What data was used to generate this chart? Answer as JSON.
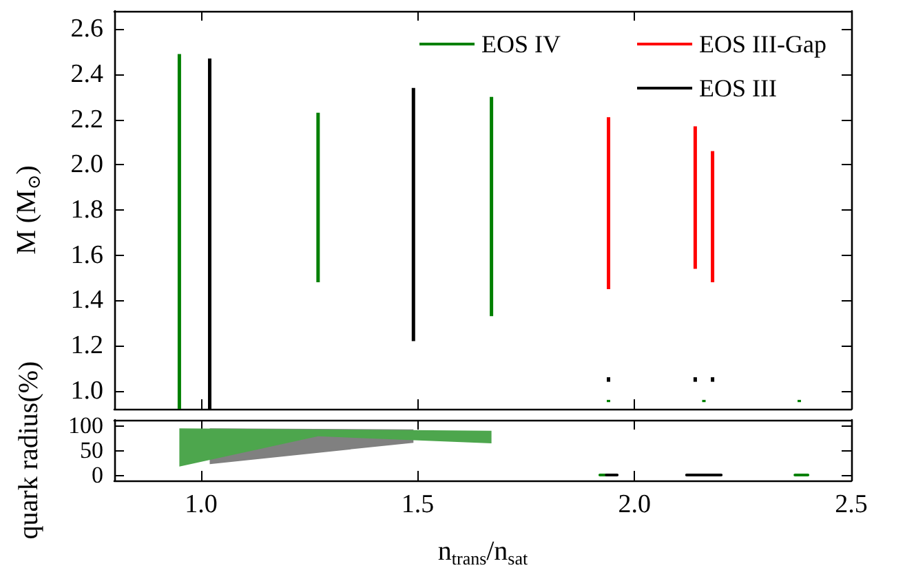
{
  "chart_data": [
    {
      "type": "bar",
      "ylabel": "M (M$_{⊙}$)",
      "legend": "top right",
      "tick_labels": "y",
      "xlim": [
        0.8,
        2.5
      ],
      "xticks": [
        {
          "value": 1,
          "label": null
        },
        {
          "value": 1.5,
          "label": null
        },
        {
          "value": 2,
          "label": null
        },
        {
          "value": 2.5,
          "label": null
        }
      ],
      "ylim": [
        0.92,
        2.68
      ],
      "yticks": [
        {
          "value": 1,
          "label": "1.0"
        },
        {
          "value": 1.2,
          "label": "1.2"
        },
        {
          "value": 1.4,
          "label": "1.4"
        },
        {
          "value": 1.6,
          "label": "1.6"
        },
        {
          "value": 1.8,
          "label": "1.8"
        },
        {
          "value": 2,
          "label": "2.0"
        },
        {
          "value": 2.2,
          "label": "2.2"
        },
        {
          "value": 2.4,
          "label": "2.4"
        },
        {
          "value": 2.6,
          "label": "2.6"
        }
      ],
      "series": [
        {
          "name": "EOS IV",
          "color": "#008000",
          "x": [
            0.95,
            1.27,
            1.67,
            1.94,
            2.16,
            2.38
          ],
          "base": [
            0.92,
            1.48,
            1.33,
            0.95,
            0.95,
            0.95
          ],
          "values": [
            1.57,
            0.75,
            0.97,
            0.01,
            0.01,
            0.01
          ]
        },
        {
          "name": "EOS III-Gap",
          "color": "#ff0000",
          "x": [
            1.94,
            2.14,
            2.18
          ],
          "base": [
            1.45,
            1.54,
            1.48
          ],
          "values": [
            0.76,
            0.63,
            0.58
          ]
        },
        {
          "name": "EOS III",
          "color": "#000000",
          "x": [
            1.02,
            1.49,
            1.94,
            2.14,
            2.18
          ],
          "base": [
            0.92,
            1.22,
            1.04,
            1.04,
            1.04
          ],
          "values": [
            1.55,
            1.12,
            0.02,
            0.02,
            0.02
          ]
        }
      ]
    },
    {
      "type": "line",
      "xlabel": "n$_{trans}$/n$_{sat}$",
      "ylabel": "quark radius(%)",
      "marker": "none",
      "xlim": [
        0.8,
        2.5
      ],
      "xticks": [
        {
          "value": 1,
          "label": "1.0"
        },
        {
          "value": 1.5,
          "label": "1.5"
        },
        {
          "value": 2,
          "label": "2.0"
        },
        {
          "value": 2.5,
          "label": "2.5"
        }
      ],
      "ylim": [
        -11,
        111
      ],
      "yticks": [
        0,
        50,
        100
      ],
      "series": [
        {
          "type": "line",
          "color": "#808080",
          "x": [
            1.02,
            1.49
          ],
          "values": [
            null,
            null
          ],
          "lower": [
            22,
            65
          ],
          "upper": [
            94,
            92
          ]
        },
        {
          "type": "line",
          "color": "#4da64d",
          "x": [
            0.95,
            1.27,
            1.67
          ],
          "values": [
            null,
            null,
            null
          ],
          "lower": [
            17,
            78,
            64
          ],
          "upper": [
            94,
            92,
            89
          ]
        },
        {
          "color": "#008000",
          "x": [
            1.92,
            1.945,
            1.96,
            2.15,
            2.18,
            2.2,
            2.37,
            2.4
          ],
          "values": [
            0,
            0,
            null,
            0,
            0,
            null,
            0,
            0
          ]
        },
        {
          "color": "#000000",
          "x": [
            1.935,
            1.96,
            1.97,
            2.12,
            2.2
          ],
          "values": [
            0,
            0,
            null,
            0,
            0
          ]
        }
      ]
    }
  ]
}
